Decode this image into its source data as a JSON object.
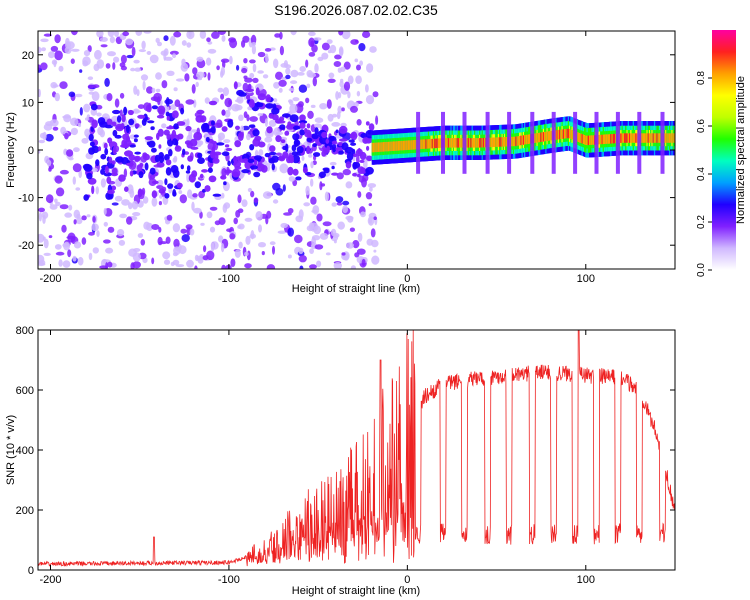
{
  "figure": {
    "title": "S196.2026.087.02.02.C35"
  },
  "colorbar": {
    "label": "Normalized spectral amplitude",
    "range": [
      0,
      1
    ],
    "ticks": [
      0.0,
      0.2,
      0.4,
      0.6,
      0.8
    ],
    "tick_labels": [
      "0.0",
      "0.2",
      "0.4",
      "0.6",
      "0.8"
    ],
    "colors": [
      "#ffffff",
      "#d0b8ff",
      "#8020ff",
      "#2000ff",
      "#00a0ff",
      "#00ffc0",
      "#20ff00",
      "#c0ff00",
      "#ffff00",
      "#ffa000",
      "#ff2020",
      "#ff00a0"
    ]
  },
  "chart_data": [
    {
      "type": "heatmap",
      "name": "spectrogram",
      "xlabel": "Height of straight line (km)",
      "ylabel": "Frequency (Hz)",
      "xlim": [
        -207,
        150
      ],
      "ylim": [
        -25,
        25
      ],
      "xticks": [
        -200,
        -100,
        0,
        100
      ],
      "xtick_labels": [
        "-200",
        "-100",
        "0",
        "100"
      ],
      "yticks": [
        -20,
        -10,
        0,
        10,
        20
      ],
      "ytick_labels": [
        "-20",
        "-10",
        "0",
        "10",
        "20"
      ],
      "description_series": {
        "ridge_start_km": -20,
        "ridge_frequency_hz": [
          {
            "x": -20,
            "f": 0.5
          },
          {
            "x": 0,
            "f": 1.0
          },
          {
            "x": 20,
            "f": 1.5
          },
          {
            "x": 40,
            "f": 1.5
          },
          {
            "x": 60,
            "f": 1.8
          },
          {
            "x": 80,
            "f": 3.0
          },
          {
            "x": 90,
            "f": 3.5
          },
          {
            "x": 100,
            "f": 2.0
          },
          {
            "x": 120,
            "f": 2.5
          },
          {
            "x": 150,
            "f": 2.5
          }
        ]
      }
    },
    {
      "type": "line",
      "name": "snr",
      "xlabel": "Height of straight line (km)",
      "ylabel": "SNR (10 * v/v)",
      "xlim": [
        -207,
        150
      ],
      "ylim": [
        0,
        800
      ],
      "xticks": [
        -200,
        -100,
        0,
        100
      ],
      "xtick_labels": [
        "-200",
        "-100",
        "0",
        "100"
      ],
      "yticks": [
        0,
        200,
        400,
        600,
        800
      ],
      "ytick_labels": [
        "0",
        "200",
        "400",
        "600",
        "800"
      ],
      "color": "#ee2222",
      "envelope": [
        {
          "x": -207,
          "y": 20
        },
        {
          "x": -100,
          "y": 25
        },
        {
          "x": -80,
          "y": 60
        },
        {
          "x": -60,
          "y": 150
        },
        {
          "x": -40,
          "y": 200
        },
        {
          "x": -20,
          "y": 300
        },
        {
          "x": -10,
          "y": 400
        },
        {
          "x": 0,
          "y": 480
        },
        {
          "x": 10,
          "y": 580
        },
        {
          "x": 20,
          "y": 620
        },
        {
          "x": 40,
          "y": 640
        },
        {
          "x": 60,
          "y": 650
        },
        {
          "x": 80,
          "y": 660
        },
        {
          "x": 100,
          "y": 650
        },
        {
          "x": 120,
          "y": 640
        },
        {
          "x": 130,
          "y": 600
        },
        {
          "x": 140,
          "y": 450
        },
        {
          "x": 150,
          "y": 200
        }
      ],
      "dips_km": [
        6,
        20,
        32,
        45,
        57,
        70,
        82,
        94,
        106,
        118,
        130,
        143
      ],
      "dip_level": 120,
      "peaks": [
        {
          "x": -142,
          "y": 110
        },
        {
          "x": -15,
          "y": 700
        },
        {
          "x": 96,
          "y": 820
        }
      ]
    }
  ]
}
